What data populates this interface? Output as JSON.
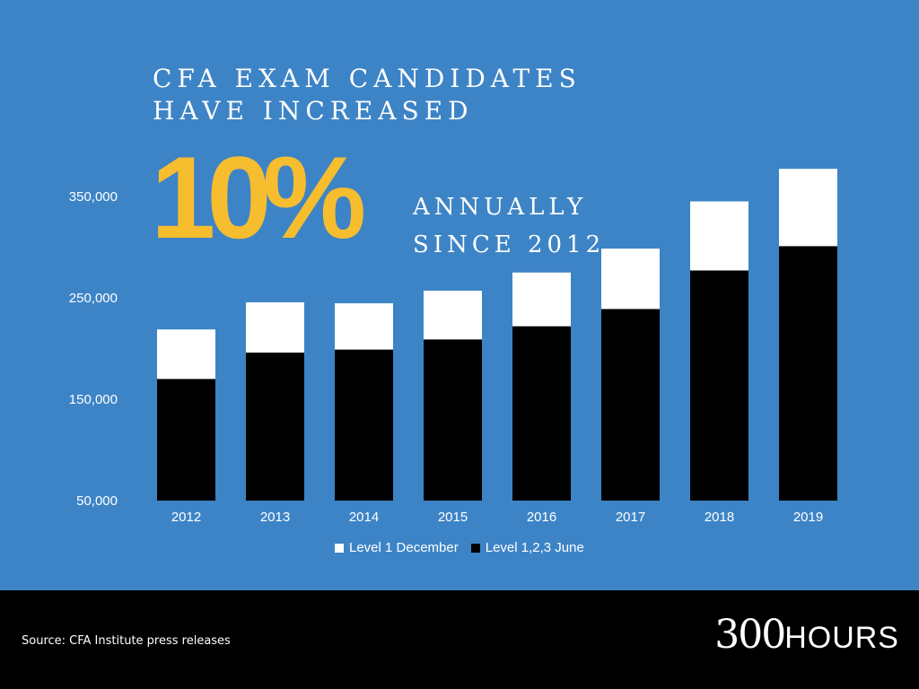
{
  "headline": {
    "line1": "CFA EXAM CANDIDATES",
    "line2": "HAVE INCREASED"
  },
  "big_stat": "10%",
  "subline": {
    "line1": "ANNUALLY",
    "line2": "SINCE 2012"
  },
  "footer": {
    "source": "Source: CFA Institute press releases",
    "brand_number": "300",
    "brand_word": "HOURS"
  },
  "colors": {
    "background": "#3d84c6",
    "accent": "#f6bd2f",
    "december": "#ffffff",
    "june": "#000000",
    "footer": "#000000"
  },
  "chart_data": {
    "type": "bar",
    "stacked": true,
    "categories": [
      "2012",
      "2013",
      "2014",
      "2015",
      "2016",
      "2017",
      "2018",
      "2019"
    ],
    "series": [
      {
        "name": "Level 1,2,3 June",
        "values": [
          120000,
          146000,
          149000,
          159000,
          172000,
          189000,
          227000,
          251000
        ]
      },
      {
        "name": "Level 1 December",
        "values": [
          48826,
          49586,
          45620,
          48064,
          52997,
          59542,
          68117,
          76245
        ]
      }
    ],
    "totals": [
      "168,826",
      "195,586",
      "194,620",
      "207,064",
      "224,997",
      "248,542",
      "295,117",
      "327,245"
    ],
    "total_values": [
      168826,
      195586,
      194620,
      207064,
      224997,
      248542,
      295117,
      327245
    ],
    "y_ticks": [
      50000,
      150000,
      250000,
      350000
    ],
    "y_tick_labels": [
      "50,000",
      "150,000",
      "250,000",
      "350,000"
    ],
    "ylim": [
      50000,
      350000
    ],
    "grid": false,
    "legend_position": "bottom"
  }
}
